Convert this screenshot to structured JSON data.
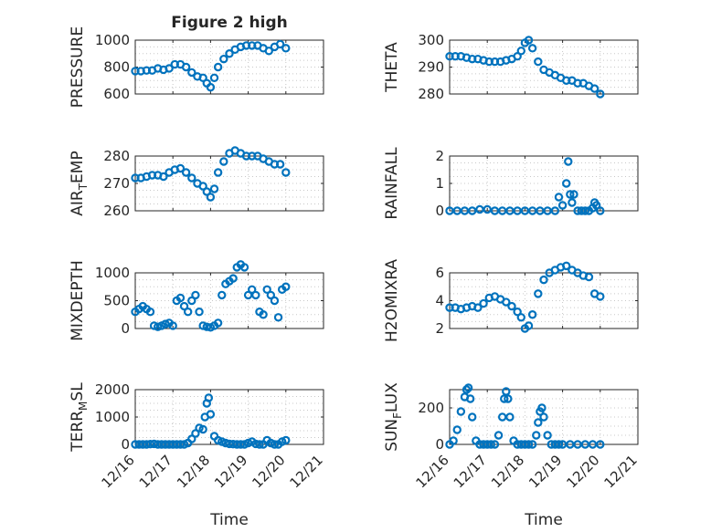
{
  "figure": {
    "title": "Figure 2 high",
    "xlabel": "Time",
    "marker_color": "#0072BD"
  },
  "chart_data": [
    {
      "type": "scatter",
      "ylabel": "PRESSURE",
      "ylim": [
        600,
        1000
      ],
      "yticks": [
        "600",
        "800",
        "1000"
      ],
      "xlim": [
        0,
        5
      ],
      "xticks": [],
      "grid": true,
      "x": [
        0.0,
        0.15,
        0.3,
        0.45,
        0.6,
        0.75,
        0.9,
        1.05,
        1.2,
        1.35,
        1.5,
        1.65,
        1.8,
        1.9,
        2.0,
        2.1,
        2.2,
        2.35,
        2.5,
        2.65,
        2.8,
        2.95,
        3.1,
        3.25,
        3.4,
        3.55,
        3.7,
        3.85,
        4.0
      ],
      "y": [
        770,
        770,
        775,
        775,
        790,
        780,
        790,
        820,
        820,
        800,
        760,
        730,
        720,
        680,
        650,
        720,
        800,
        860,
        900,
        930,
        950,
        960,
        960,
        960,
        940,
        920,
        950,
        970,
        940
      ]
    },
    {
      "type": "scatter",
      "ylabel": "THETA",
      "ylim": [
        280,
        300
      ],
      "yticks": [
        "280",
        "290",
        "300"
      ],
      "xlim": [
        0,
        5
      ],
      "xticks": [],
      "grid": true,
      "x": [
        0.0,
        0.15,
        0.3,
        0.45,
        0.6,
        0.75,
        0.9,
        1.05,
        1.2,
        1.35,
        1.5,
        1.65,
        1.8,
        1.9,
        2.0,
        2.1,
        2.2,
        2.35,
        2.5,
        2.65,
        2.8,
        2.95,
        3.1,
        3.25,
        3.4,
        3.55,
        3.7,
        3.85,
        4.0
      ],
      "y": [
        294,
        294,
        294,
        293.5,
        293,
        293,
        292.5,
        292,
        292,
        292,
        292.5,
        293,
        294,
        296,
        299,
        300,
        297,
        292,
        289,
        288,
        287,
        286,
        285,
        285,
        284,
        284,
        283,
        282,
        280
      ]
    },
    {
      "type": "scatter",
      "ylabel": "AIR_TEMP",
      "ylim": [
        260,
        280
      ],
      "yticks": [
        "260",
        "270",
        "280"
      ],
      "xlim": [
        0,
        5
      ],
      "xticks": [],
      "grid": true,
      "x": [
        0.0,
        0.15,
        0.3,
        0.45,
        0.6,
        0.75,
        0.9,
        1.05,
        1.2,
        1.35,
        1.5,
        1.65,
        1.8,
        1.9,
        2.0,
        2.1,
        2.2,
        2.35,
        2.5,
        2.65,
        2.8,
        2.95,
        3.1,
        3.25,
        3.4,
        3.55,
        3.7,
        3.85,
        4.0
      ],
      "y": [
        272,
        272,
        272.5,
        273,
        273,
        272.5,
        274,
        275,
        275.5,
        274,
        272,
        270,
        269,
        267,
        265,
        268,
        274,
        278,
        281,
        282,
        281,
        280,
        280,
        280,
        279,
        278,
        277,
        277,
        274
      ]
    },
    {
      "type": "scatter",
      "ylabel": "RAINFALL",
      "ylim": [
        0,
        2
      ],
      "yticks": [
        "0",
        "1",
        "2"
      ],
      "xlim": [
        0,
        5
      ],
      "xticks": [],
      "grid": true,
      "x": [
        0.0,
        0.2,
        0.4,
        0.6,
        0.8,
        1.0,
        1.2,
        1.4,
        1.6,
        1.8,
        2.0,
        2.2,
        2.4,
        2.6,
        2.8,
        2.9,
        3.0,
        3.1,
        3.15,
        3.2,
        3.25,
        3.3,
        3.4,
        3.5,
        3.6,
        3.7,
        3.8,
        3.85,
        3.9,
        4.0
      ],
      "y": [
        0,
        0,
        0,
        0,
        0.05,
        0.05,
        0,
        0,
        0,
        0,
        0,
        0,
        0,
        0,
        0,
        0.5,
        0.2,
        1.0,
        1.8,
        0.6,
        0.3,
        0.6,
        0,
        0,
        0,
        0,
        0.1,
        0.3,
        0.2,
        0
      ]
    },
    {
      "type": "scatter",
      "ylabel": "MIXDEPTH",
      "ylim": [
        0,
        1000
      ],
      "yticks": [
        "0",
        "500",
        "1000"
      ],
      "xlim": [
        0,
        5
      ],
      "xticks": [],
      "grid": true,
      "x": [
        0.0,
        0.1,
        0.2,
        0.3,
        0.4,
        0.5,
        0.6,
        0.7,
        0.8,
        0.9,
        1.0,
        1.1,
        1.2,
        1.3,
        1.4,
        1.5,
        1.6,
        1.7,
        1.8,
        1.9,
        2.0,
        2.1,
        2.2,
        2.3,
        2.4,
        2.5,
        2.6,
        2.7,
        2.8,
        2.9,
        3.0,
        3.1,
        3.2,
        3.3,
        3.4,
        3.5,
        3.6,
        3.7,
        3.8,
        3.9,
        4.0
      ],
      "y": [
        300,
        350,
        400,
        350,
        300,
        50,
        30,
        50,
        80,
        100,
        50,
        500,
        550,
        400,
        300,
        500,
        600,
        300,
        50,
        30,
        20,
        50,
        100,
        600,
        800,
        850,
        900,
        1100,
        1150,
        1100,
        600,
        700,
        600,
        300,
        250,
        700,
        600,
        500,
        200,
        700,
        750
      ]
    },
    {
      "type": "scatter",
      "ylabel": "H2OMIXRA",
      "ylim": [
        2,
        6
      ],
      "yticks": [
        "2",
        "4",
        "6"
      ],
      "xlim": [
        0,
        5
      ],
      "xticks": [],
      "grid": true,
      "x": [
        0.0,
        0.15,
        0.3,
        0.45,
        0.6,
        0.75,
        0.9,
        1.05,
        1.2,
        1.35,
        1.5,
        1.65,
        1.8,
        1.9,
        2.0,
        2.1,
        2.2,
        2.35,
        2.5,
        2.65,
        2.8,
        2.95,
        3.1,
        3.25,
        3.4,
        3.55,
        3.7,
        3.85,
        4.0
      ],
      "y": [
        3.5,
        3.5,
        3.4,
        3.5,
        3.6,
        3.5,
        3.8,
        4.2,
        4.3,
        4.1,
        3.9,
        3.6,
        3.2,
        2.8,
        2.0,
        2.2,
        3.0,
        4.5,
        5.5,
        6.0,
        6.2,
        6.4,
        6.5,
        6.2,
        6.0,
        5.8,
        5.7,
        4.5,
        4.3
      ]
    },
    {
      "type": "scatter",
      "ylabel": "TERR_MSL",
      "ylim": [
        0,
        2000
      ],
      "yticks": [
        "0",
        "1000",
        "2000"
      ],
      "xlim": [
        0,
        5
      ],
      "xticks": [],
      "grid": true,
      "x": [
        0.0,
        0.1,
        0.2,
        0.3,
        0.4,
        0.5,
        0.6,
        0.7,
        0.8,
        0.9,
        1.0,
        1.1,
        1.2,
        1.3,
        1.4,
        1.5,
        1.6,
        1.7,
        1.8,
        1.85,
        1.9,
        1.95,
        2.0,
        2.1,
        2.2,
        2.3,
        2.4,
        2.5,
        2.6,
        2.7,
        2.8,
        2.9,
        3.0,
        3.1,
        3.2,
        3.3,
        3.4,
        3.5,
        3.6,
        3.7,
        3.8,
        3.9,
        4.0
      ],
      "y": [
        0,
        0,
        0,
        0,
        10,
        20,
        0,
        0,
        0,
        0,
        0,
        0,
        0,
        0,
        50,
        200,
        400,
        600,
        550,
        1000,
        1500,
        1700,
        1100,
        300,
        150,
        100,
        50,
        20,
        10,
        0,
        0,
        0,
        50,
        100,
        20,
        0,
        0,
        150,
        50,
        0,
        0,
        100,
        150
      ]
    },
    {
      "type": "scatter",
      "ylabel": "SUN_FLUX",
      "ylim": [
        0,
        300
      ],
      "yticks": [
        "0",
        "200"
      ],
      "xlim": [
        0,
        5
      ],
      "xticks": [
        "12/16",
        "12/17",
        "12/18",
        "12/19",
        "12/20",
        "12/21"
      ],
      "xlabel": "Time",
      "grid": true,
      "x": [
        0.0,
        0.1,
        0.2,
        0.3,
        0.4,
        0.45,
        0.5,
        0.55,
        0.6,
        0.7,
        0.8,
        0.9,
        1.0,
        1.1,
        1.2,
        1.3,
        1.4,
        1.45,
        1.5,
        1.55,
        1.6,
        1.7,
        1.8,
        1.9,
        2.0,
        2.1,
        2.2,
        2.3,
        2.35,
        2.4,
        2.45,
        2.5,
        2.6,
        2.7,
        2.8,
        2.9,
        3.0,
        3.2,
        3.4,
        3.6,
        3.8,
        4.0
      ],
      "y": [
        0,
        20,
        80,
        180,
        260,
        300,
        310,
        250,
        150,
        20,
        0,
        0,
        0,
        0,
        0,
        50,
        150,
        250,
        290,
        250,
        150,
        20,
        0,
        0,
        0,
        0,
        0,
        50,
        120,
        180,
        200,
        150,
        50,
        0,
        0,
        0,
        0,
        0,
        0,
        0,
        0,
        0
      ]
    }
  ]
}
